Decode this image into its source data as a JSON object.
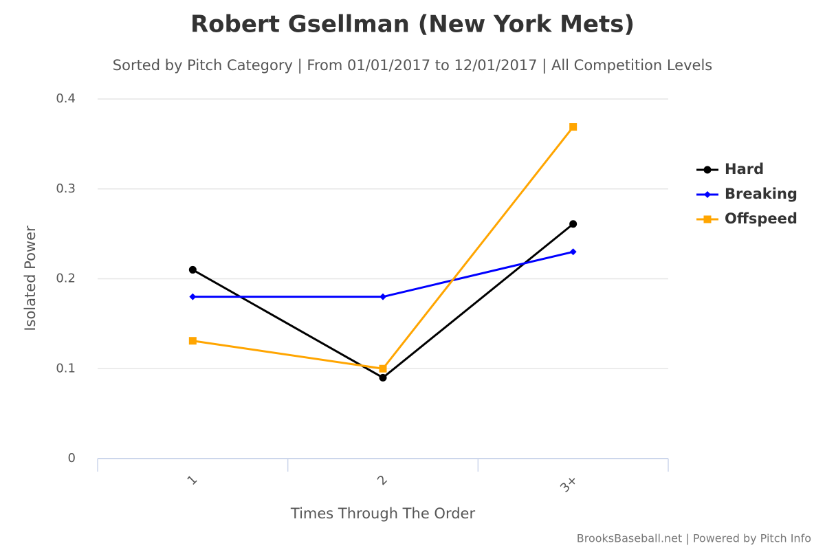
{
  "chart_data": {
    "type": "line",
    "title": "Robert Gsellman (New York Mets)",
    "subtitle": "Sorted by Pitch Category | From 01/01/2017 to 12/01/2017 | All Competition Levels",
    "x_label": "Times Through The Order",
    "y_label": "Isolated Power",
    "credits": "BrooksBaseball.net | Powered by Pitch Info",
    "categories": [
      "1",
      "2",
      "3+"
    ],
    "series": [
      {
        "name": "Hard",
        "color": "#000000",
        "marker": "circle",
        "values": [
          0.21,
          0.09,
          0.261
        ]
      },
      {
        "name": "Breaking",
        "color": "#0000ff",
        "marker": "diamond",
        "values": [
          0.18,
          0.18,
          0.23
        ]
      },
      {
        "name": "Offspeed",
        "color": "#ffa500",
        "marker": "square",
        "values": [
          0.131,
          0.1,
          0.369
        ]
      }
    ],
    "ylim": [
      0,
      0.4
    ],
    "yticks": [
      0,
      0.1,
      0.2,
      0.3,
      0.4
    ],
    "grid": true,
    "legend": "right"
  }
}
